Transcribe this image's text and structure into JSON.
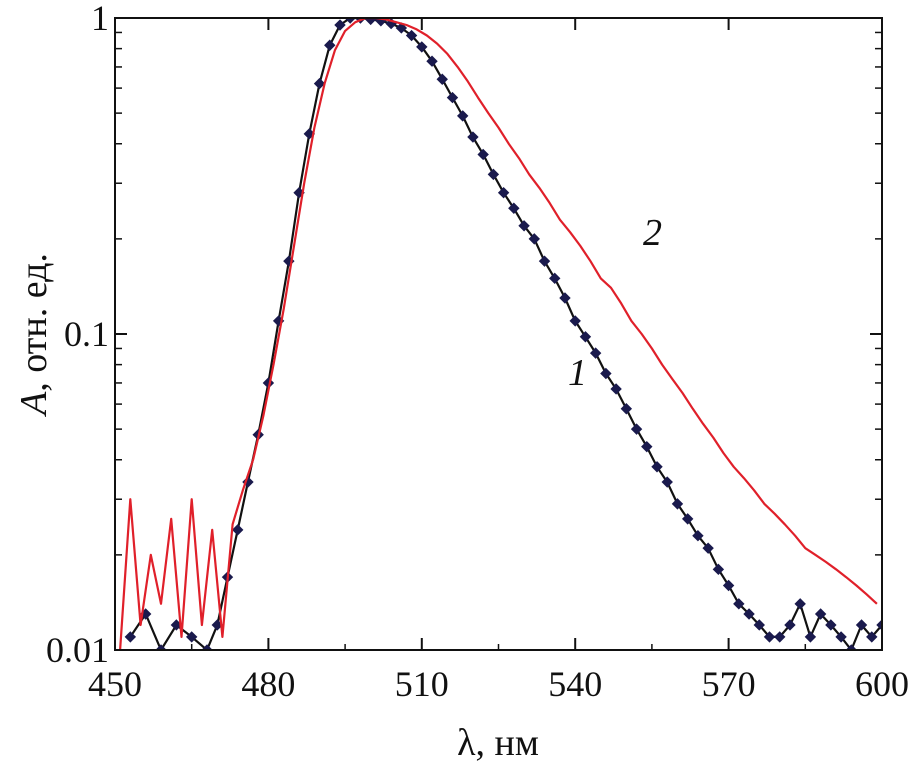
{
  "chart_data": {
    "type": "line",
    "title": "",
    "xlabel": "λ, нм",
    "ylabel_italic": "A",
    "ylabel_rest": ", отн. ед.",
    "xlim": [
      450,
      600
    ],
    "ylim": [
      0.01,
      1
    ],
    "yscale": "log",
    "grid": false,
    "x_ticks": [
      450,
      480,
      510,
      540,
      570,
      600
    ],
    "x_tick_labels": [
      "450",
      "480",
      "510",
      "540",
      "570",
      "600"
    ],
    "y_ticks": [
      1,
      0.1,
      0.01
    ],
    "y_tick_labels": [
      "1",
      "0.1",
      "0.01"
    ],
    "series": [
      {
        "label": "1",
        "color": "#1a1a4d",
        "marker": "diamond",
        "x": [
          453,
          456,
          459,
          462,
          465,
          468,
          470,
          472,
          474,
          476,
          478,
          480,
          482,
          484,
          486,
          488,
          490,
          492,
          494,
          496,
          498,
          500,
          502,
          504,
          506,
          508,
          510,
          512,
          514,
          516,
          518,
          520,
          522,
          524,
          526,
          528,
          530,
          532,
          534,
          536,
          538,
          540,
          542,
          544,
          546,
          548,
          550,
          552,
          554,
          556,
          558,
          560,
          562,
          564,
          566,
          568,
          570,
          572,
          574,
          576,
          578,
          580,
          582,
          584,
          586,
          588,
          590,
          592,
          594,
          596,
          598,
          600
        ],
        "y": [
          0.011,
          0.013,
          0.01,
          0.012,
          0.011,
          0.01,
          0.012,
          0.017,
          0.024,
          0.034,
          0.048,
          0.07,
          0.11,
          0.17,
          0.28,
          0.43,
          0.62,
          0.82,
          0.95,
          1.0,
          1.0,
          0.99,
          0.98,
          0.96,
          0.93,
          0.88,
          0.81,
          0.73,
          0.64,
          0.56,
          0.49,
          0.42,
          0.37,
          0.32,
          0.28,
          0.25,
          0.22,
          0.2,
          0.17,
          0.15,
          0.13,
          0.11,
          0.098,
          0.087,
          0.075,
          0.067,
          0.058,
          0.05,
          0.044,
          0.038,
          0.034,
          0.029,
          0.026,
          0.023,
          0.021,
          0.018,
          0.016,
          0.014,
          0.013,
          0.012,
          0.011,
          0.011,
          0.012,
          0.014,
          0.011,
          0.013,
          0.012,
          0.011,
          0.01,
          0.012,
          0.011,
          0.012
        ]
      },
      {
        "label": "2",
        "color": "#e0202a",
        "marker": "none",
        "x": [
          451,
          453,
          455,
          457,
          459,
          461,
          463,
          465,
          467,
          469,
          471,
          473,
          475,
          477,
          479,
          481,
          483,
          485,
          487,
          489,
          491,
          493,
          495,
          497,
          499,
          501,
          503,
          505,
          507,
          509,
          511,
          513,
          515,
          517,
          519,
          521,
          523,
          525,
          527,
          529,
          531,
          533,
          535,
          537,
          539,
          541,
          543,
          545,
          547,
          549,
          551,
          553,
          555,
          557,
          559,
          561,
          563,
          565,
          567,
          569,
          571,
          573,
          575,
          577,
          579,
          581,
          583,
          585,
          587,
          589,
          591,
          593,
          595,
          597,
          599
        ],
        "y": [
          0.01,
          0.03,
          0.012,
          0.02,
          0.014,
          0.026,
          0.011,
          0.03,
          0.012,
          0.024,
          0.011,
          0.025,
          0.032,
          0.04,
          0.055,
          0.08,
          0.12,
          0.19,
          0.3,
          0.45,
          0.62,
          0.79,
          0.91,
          0.97,
          1.0,
          1.0,
          0.99,
          0.97,
          0.95,
          0.92,
          0.88,
          0.83,
          0.77,
          0.7,
          0.63,
          0.56,
          0.5,
          0.45,
          0.4,
          0.36,
          0.32,
          0.29,
          0.26,
          0.23,
          0.21,
          0.19,
          0.17,
          0.15,
          0.14,
          0.125,
          0.11,
          0.1,
          0.09,
          0.08,
          0.072,
          0.065,
          0.058,
          0.052,
          0.047,
          0.042,
          0.038,
          0.035,
          0.032,
          0.029,
          0.027,
          0.025,
          0.023,
          0.021,
          0.02,
          0.019,
          0.018,
          0.017,
          0.016,
          0.015,
          0.014
        ]
      }
    ],
    "series_labels": [
      "1",
      "2"
    ]
  }
}
